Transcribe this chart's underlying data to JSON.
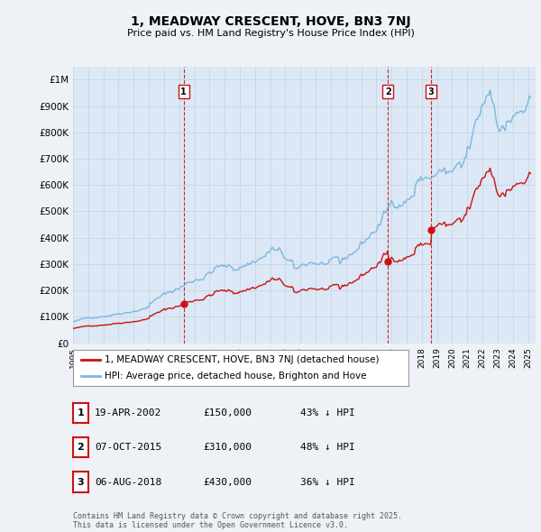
{
  "title": "1, MEADWAY CRESCENT, HOVE, BN3 7NJ",
  "subtitle": "Price paid vs. HM Land Registry's House Price Index (HPI)",
  "background_color": "#eef2f7",
  "plot_bg_color": "#dce8f5",
  "ylim": [
    0,
    1050000
  ],
  "yticks": [
    0,
    100000,
    200000,
    300000,
    400000,
    500000,
    600000,
    700000,
    800000,
    900000,
    1000000
  ],
  "ytick_labels": [
    "£0",
    "£100K",
    "£200K",
    "£300K",
    "£400K",
    "£500K",
    "£600K",
    "£700K",
    "£800K",
    "£900K",
    "£1M"
  ],
  "hpi_color": "#7ab8e0",
  "sale_color": "#cc1111",
  "vline_color": "#cc1111",
  "grid_color": "#c8d8e8",
  "sale_labels": [
    "1",
    "2",
    "3"
  ],
  "sale_year_floats": [
    2002.298,
    2015.763,
    2018.597
  ],
  "sale_prices": [
    150000,
    310000,
    430000
  ],
  "sale_info": [
    {
      "label": "1",
      "date": "19-APR-2002",
      "price": "£150,000",
      "hpi": "43% ↓ HPI"
    },
    {
      "label": "2",
      "date": "07-OCT-2015",
      "price": "£310,000",
      "hpi": "48% ↓ HPI"
    },
    {
      "label": "3",
      "date": "06-AUG-2018",
      "price": "£430,000",
      "hpi": "36% ↓ HPI"
    }
  ],
  "legend_sale": "1, MEADWAY CRESCENT, HOVE, BN3 7NJ (detached house)",
  "legend_hpi": "HPI: Average price, detached house, Brighton and Hove",
  "footer": "Contains HM Land Registry data © Crown copyright and database right 2025.\nThis data is licensed under the Open Government Licence v3.0.",
  "xlim_left": 1995.0,
  "xlim_right": 2025.5
}
